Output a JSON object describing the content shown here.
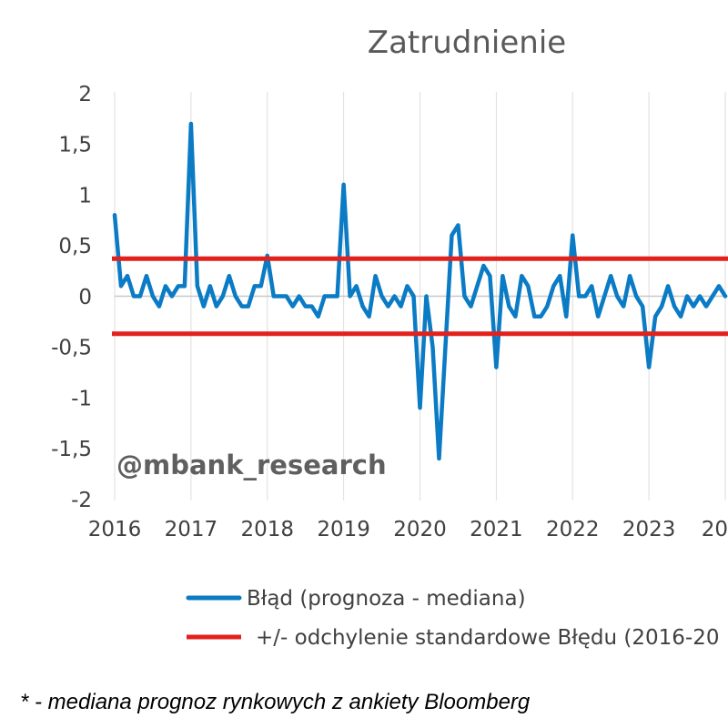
{
  "chart_data": {
    "type": "line",
    "title": "Zatrudnienie",
    "ylim": [
      -2,
      2
    ],
    "y_ticks": [
      "2",
      "1,5",
      "1",
      "0,5",
      "0",
      "-0,5",
      "-1",
      "-1,5",
      "-2"
    ],
    "x_ticks": [
      "2016",
      "2017",
      "2018",
      "2019",
      "2020",
      "2021",
      "2022",
      "2023",
      "20"
    ],
    "grid": "vertical",
    "legend_position": "bottom",
    "x": [
      "2016-01",
      "2016-02",
      "2016-03",
      "2016-04",
      "2016-05",
      "2016-06",
      "2016-07",
      "2016-08",
      "2016-09",
      "2016-10",
      "2016-11",
      "2016-12",
      "2017-01",
      "2017-02",
      "2017-03",
      "2017-04",
      "2017-05",
      "2017-06",
      "2017-07",
      "2017-08",
      "2017-09",
      "2017-10",
      "2017-11",
      "2017-12",
      "2018-01",
      "2018-02",
      "2018-03",
      "2018-04",
      "2018-05",
      "2018-06",
      "2018-07",
      "2018-08",
      "2018-09",
      "2018-10",
      "2018-11",
      "2018-12",
      "2019-01",
      "2019-02",
      "2019-03",
      "2019-04",
      "2019-05",
      "2019-06",
      "2019-07",
      "2019-08",
      "2019-09",
      "2019-10",
      "2019-11",
      "2019-12",
      "2020-01",
      "2020-02",
      "2020-03",
      "2020-04",
      "2020-05",
      "2020-06",
      "2020-07",
      "2020-08",
      "2020-09",
      "2020-10",
      "2020-11",
      "2020-12",
      "2021-01",
      "2021-02",
      "2021-03",
      "2021-04",
      "2021-05",
      "2021-06",
      "2021-07",
      "2021-08",
      "2021-09",
      "2021-10",
      "2021-11",
      "2021-12",
      "2022-01",
      "2022-02",
      "2022-03",
      "2022-04",
      "2022-05",
      "2022-06",
      "2022-07",
      "2022-08",
      "2022-09",
      "2022-10",
      "2022-11",
      "2022-12",
      "2023-01",
      "2023-02",
      "2023-03",
      "2023-04",
      "2023-05",
      "2023-06",
      "2023-07",
      "2023-08",
      "2023-09",
      "2023-10",
      "2023-11",
      "2023-12",
      "2024-01"
    ],
    "series": [
      {
        "name": "Błąd (prognoza - mediana)",
        "color": "#0a7bc4",
        "values": [
          0.8,
          0.1,
          0.2,
          0.0,
          0.0,
          0.2,
          0.0,
          -0.1,
          0.1,
          0.0,
          0.1,
          0.1,
          1.7,
          0.1,
          -0.1,
          0.1,
          -0.1,
          0.0,
          0.2,
          0.0,
          -0.1,
          -0.1,
          0.1,
          0.1,
          0.4,
          0.0,
          0.0,
          0.0,
          -0.1,
          0.0,
          -0.1,
          -0.1,
          -0.2,
          0.0,
          0.0,
          0.0,
          1.1,
          0.0,
          0.1,
          -0.1,
          -0.2,
          0.2,
          0.0,
          -0.1,
          0.0,
          -0.1,
          0.1,
          0.0,
          -1.1,
          0.0,
          -0.5,
          -1.6,
          -0.5,
          0.6,
          0.7,
          0.0,
          -0.1,
          0.1,
          0.3,
          0.2,
          -0.7,
          0.2,
          -0.1,
          -0.2,
          0.2,
          0.1,
          -0.2,
          -0.2,
          -0.1,
          0.1,
          0.2,
          -0.2,
          0.6,
          0.0,
          0.0,
          0.1,
          -0.2,
          0.0,
          0.2,
          0.0,
          -0.1,
          0.2,
          0.0,
          -0.1,
          -0.7,
          -0.2,
          -0.1,
          0.1,
          -0.1,
          -0.2,
          0.0,
          -0.1,
          0.0,
          -0.1,
          0.0,
          0.1,
          0.0
        ]
      },
      {
        "name": "+/- odchylenie standardowe Błędu (2016-20",
        "color": "#e2211c",
        "levels": [
          0.37,
          -0.37
        ]
      }
    ]
  },
  "watermark": "@mbank_research",
  "footnote": "* - mediana prognoz rynkowych z ankiety Bloomberg"
}
